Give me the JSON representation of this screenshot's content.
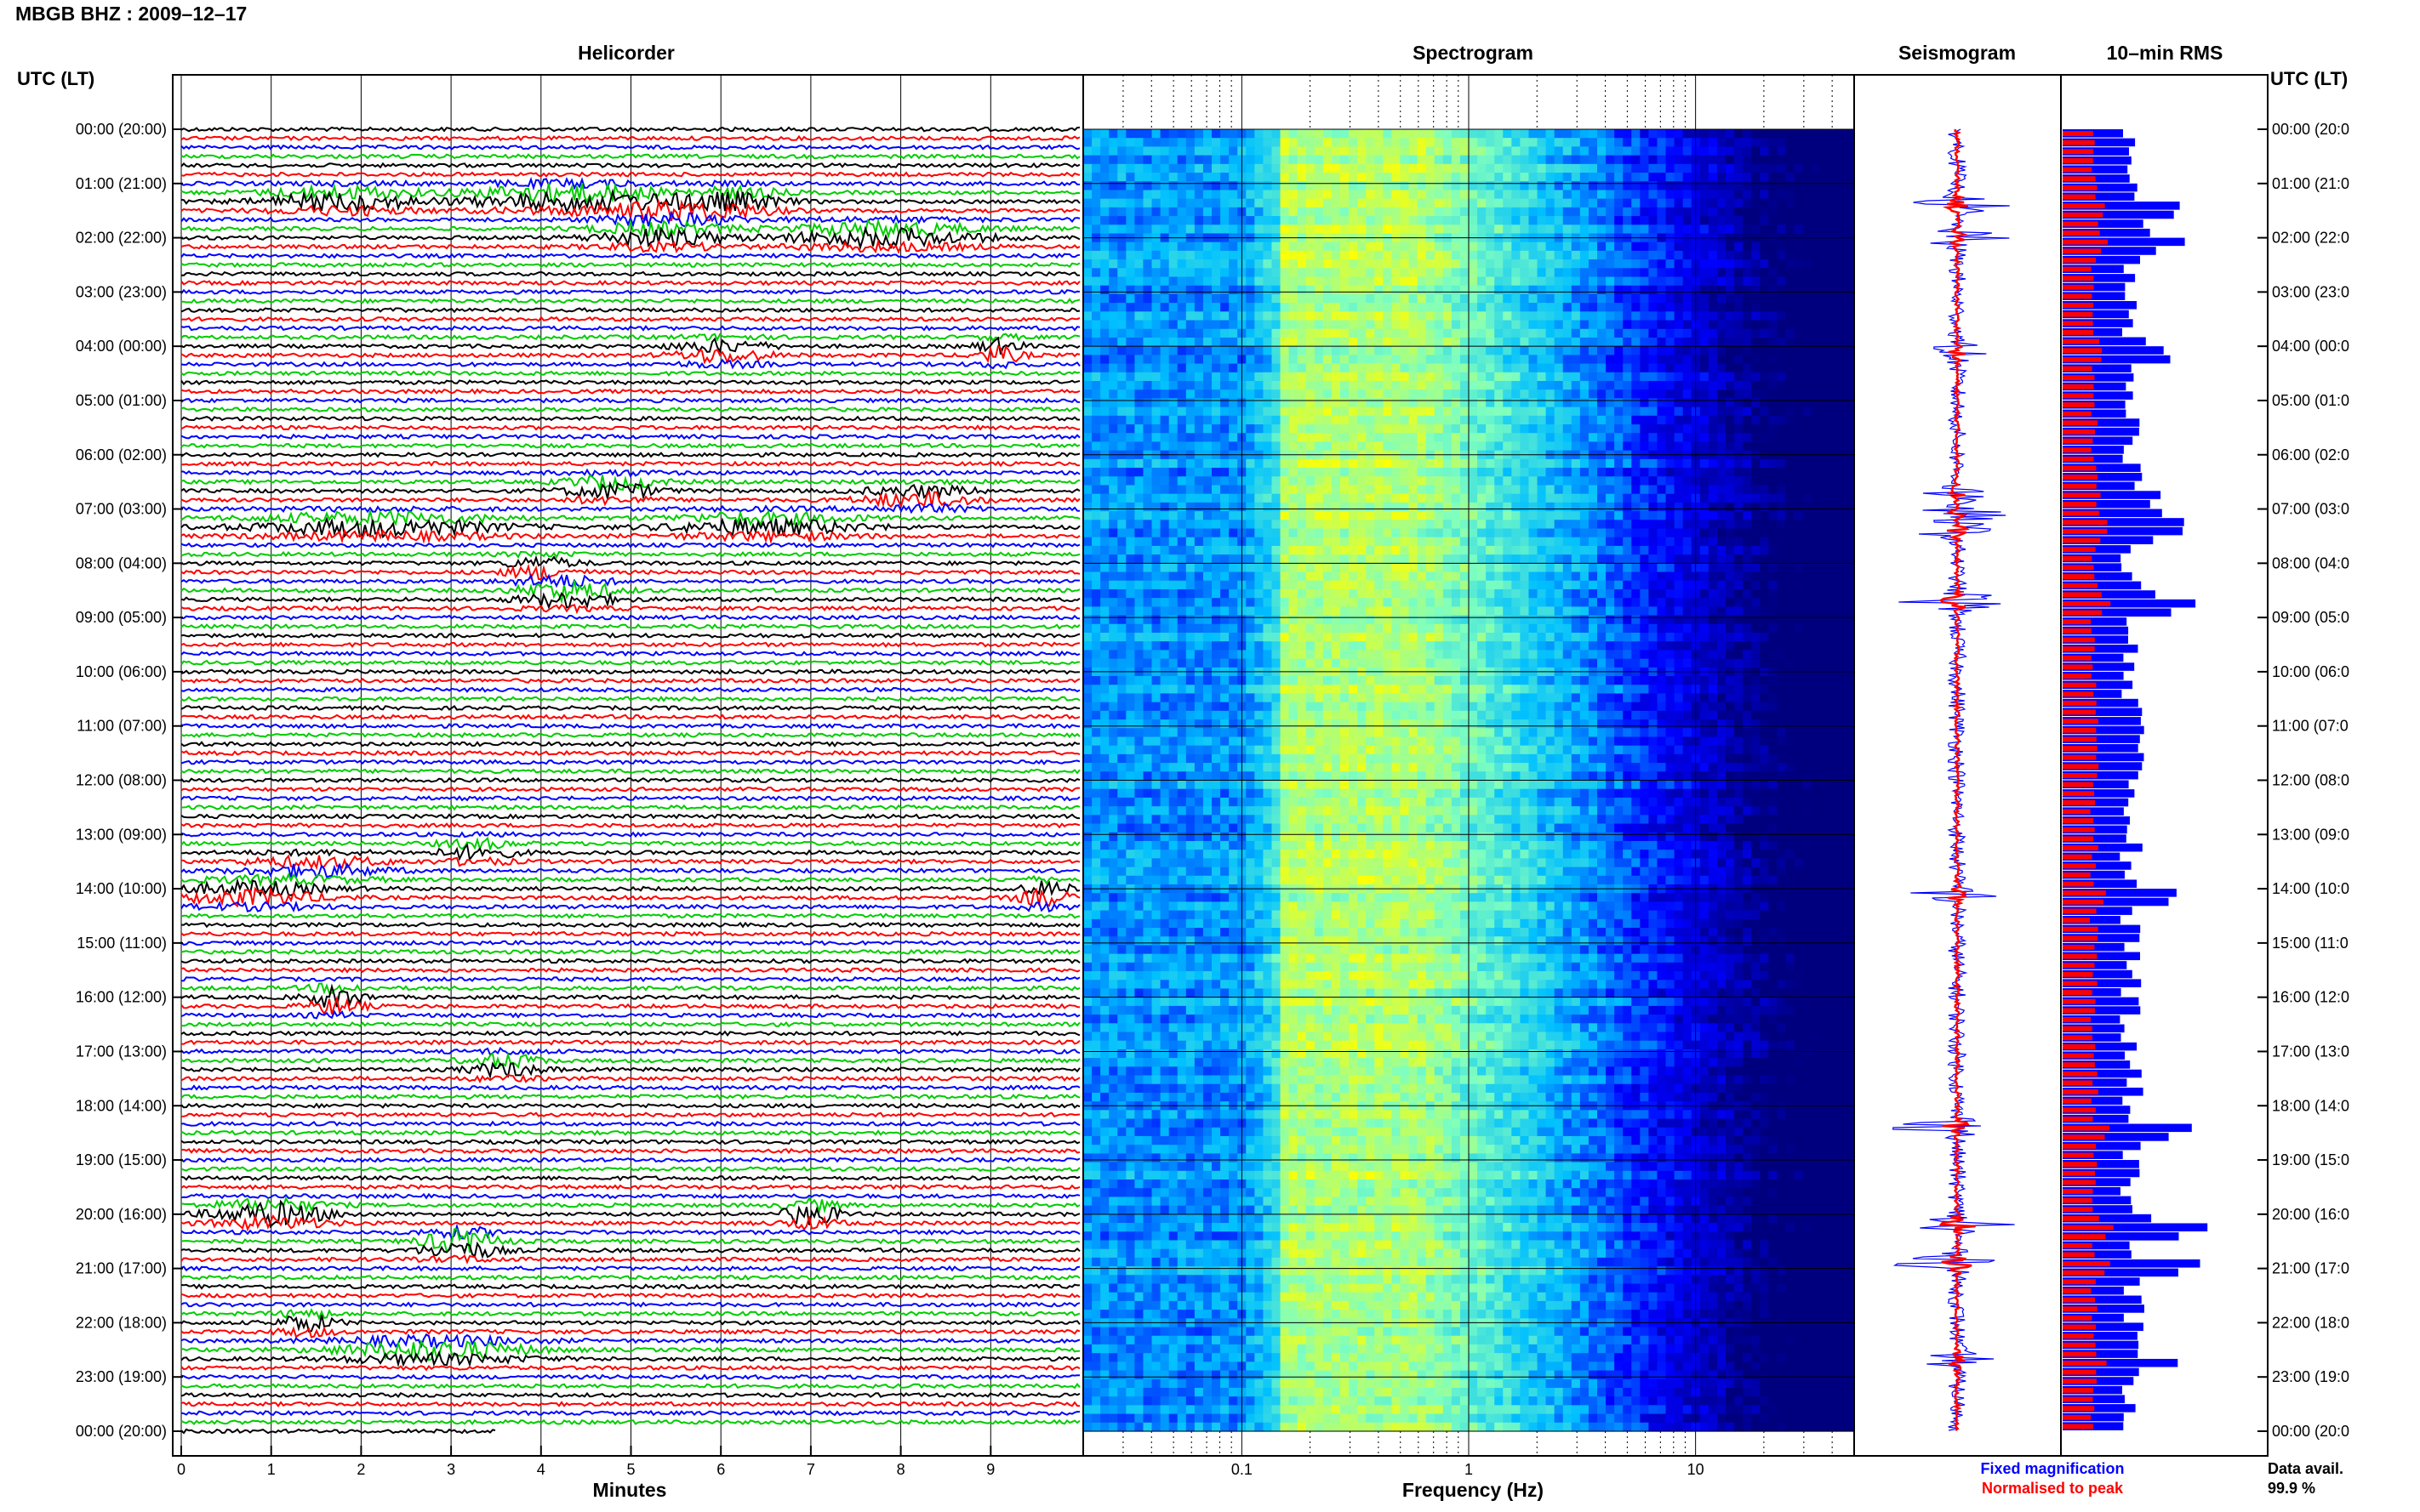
{
  "page": {
    "title": "MBGB BHZ : 2009–12–17",
    "left_axis_title": "UTC (LT)",
    "right_axis_title": "UTC (LT)"
  },
  "panels": {
    "helicorder": {
      "title": "Helicorder",
      "xlabel": "Minutes"
    },
    "spectrogram": {
      "title": "Spectrogram",
      "xlabel": "Frequency (Hz)"
    },
    "seismogram": {
      "title": "Seismogram"
    },
    "rms": {
      "title": "10–min RMS"
    }
  },
  "legend": {
    "fixed": "Fixed magnification",
    "normalised": "Normalised to peak",
    "fixed_color": "#0000ff",
    "normalised_color": "#ff0000"
  },
  "availability": {
    "label": "Data avail.",
    "value": "99.9 %"
  },
  "colors": {
    "trace_cycle": [
      "#000000",
      "#ff0000",
      "#0000ff",
      "#00cc00"
    ],
    "seis_fixed": "#0000ff",
    "seis_norm": "#ff0000",
    "rms_fixed": "#0000ff",
    "rms_norm": "#ff0000",
    "spectrogram_scale": [
      "#00007f",
      "#0000ff",
      "#00bfff",
      "#7fffbf",
      "#ffff00"
    ]
  },
  "chart_data": {
    "type": "helicorder",
    "time_labels": [
      "00:00 (20:00)",
      "01:00 (21:00)",
      "02:00 (22:00)",
      "03:00 (23:00)",
      "04:00 (00:00)",
      "05:00 (01:00)",
      "06:00 (02:00)",
      "07:00 (03:00)",
      "08:00 (04:00)",
      "09:00 (05:00)",
      "10:00 (06:00)",
      "11:00 (07:00)",
      "12:00 (08:00)",
      "13:00 (09:00)",
      "14:00 (10:00)",
      "15:00 (11:00)",
      "16:00 (12:00)",
      "17:00 (13:00)",
      "18:00 (14:00)",
      "19:00 (15:00)",
      "20:00 (16:00)",
      "21:00 (17:00)",
      "22:00 (18:00)",
      "23:00 (19:00)",
      "00:00 (20:00)"
    ],
    "right_time_labels": [
      "00:00 (20:0",
      "01:00 (21:0",
      "02:00 (22:0",
      "03:00 (23:0",
      "04:00 (00:0",
      "05:00 (01:0",
      "06:00 (02:0",
      "07:00 (03:0",
      "08:00 (04:0",
      "09:00 (05:0",
      "10:00 (06:0",
      "11:00 (07:0",
      "12:00 (08:0",
      "13:00 (09:0",
      "14:00 (10:0",
      "15:00 (11:0",
      "16:00 (12:0",
      "17:00 (13:0",
      "18:00 (14:0",
      "19:00 (15:0",
      "20:00 (16:0",
      "21:00 (17:0",
      "22:00 (18:0",
      "23:00 (19:0",
      "00:00 (20:0"
    ],
    "helicorder_x_ticks": [
      "0",
      "1",
      "2",
      "3",
      "4",
      "5",
      "6",
      "7",
      "8",
      "9"
    ],
    "helicorder_xlim": [
      0,
      10
    ],
    "spectrogram_x_ticks": [
      "0.1",
      "1",
      "10"
    ],
    "spectrogram_xlim": [
      0.02,
      50
    ],
    "spectrogram_xscale": "log",
    "rows_per_hour": 6,
    "hours": 24,
    "helicorder_events": [
      {
        "hour": 1.25,
        "minute": 4.3,
        "width": 2.0,
        "amp": 2.2,
        "color": "#000000"
      },
      {
        "hour": 1.3,
        "minute": 1.8,
        "width": 1.6,
        "amp": 1.8,
        "color": "#000000"
      },
      {
        "hour": 1.3,
        "minute": 6.2,
        "width": 1.0,
        "amp": 1.4,
        "color": "#000000"
      },
      {
        "hour": 1.5,
        "minute": 5.5,
        "width": 1.5,
        "amp": 1.6,
        "color": "#00cc00"
      },
      {
        "hour": 1.95,
        "minute": 7.8,
        "width": 2.0,
        "amp": 2.0,
        "color": "#000000"
      },
      {
        "hour": 1.95,
        "minute": 5.3,
        "width": 1.4,
        "amp": 1.8,
        "color": "#000000"
      },
      {
        "hour": 4.1,
        "minute": 6.0,
        "width": 1.0,
        "amp": 1.6,
        "color": "#ff0000"
      },
      {
        "hour": 4.1,
        "minute": 9.1,
        "width": 0.5,
        "amp": 1.8,
        "color": "#ff0000"
      },
      {
        "hour": 6.6,
        "minute": 4.8,
        "width": 1.0,
        "amp": 1.8,
        "color": "#00cc00"
      },
      {
        "hour": 6.8,
        "minute": 8.2,
        "width": 1.2,
        "amp": 1.6,
        "color": "#000000"
      },
      {
        "hour": 7.3,
        "minute": 2.2,
        "width": 2.5,
        "amp": 1.8,
        "color": "#ff0000"
      },
      {
        "hour": 7.3,
        "minute": 6.5,
        "width": 2.0,
        "amp": 1.6,
        "color": "#00cc00"
      },
      {
        "hour": 8.55,
        "minute": 4.3,
        "width": 1.0,
        "amp": 2.2,
        "color": "#000000"
      },
      {
        "hour": 8.1,
        "minute": 4.0,
        "width": 0.8,
        "amp": 1.4,
        "color": "#000000"
      },
      {
        "hour": 13.3,
        "minute": 3.3,
        "width": 0.8,
        "amp": 1.4,
        "color": "#000000"
      },
      {
        "hour": 13.6,
        "minute": 1.5,
        "width": 1.5,
        "amp": 1.4,
        "color": "#0000ff"
      },
      {
        "hour": 14.1,
        "minute": 0.8,
        "width": 1.5,
        "amp": 1.8,
        "color": "#00cc00"
      },
      {
        "hour": 14.1,
        "minute": 9.6,
        "width": 0.6,
        "amp": 1.8,
        "color": "#0000ff"
      },
      {
        "hour": 16.05,
        "minute": 1.7,
        "width": 0.6,
        "amp": 2.2,
        "color": "#ff0000"
      },
      {
        "hour": 17.25,
        "minute": 3.6,
        "width": 0.8,
        "amp": 1.6,
        "color": "#000000"
      },
      {
        "hour": 20.0,
        "minute": 1.0,
        "width": 1.2,
        "amp": 2.2,
        "color": "#ff0000"
      },
      {
        "hour": 20.0,
        "minute": 7.0,
        "width": 0.6,
        "amp": 2.0,
        "color": "#ff0000"
      },
      {
        "hour": 20.55,
        "minute": 3.1,
        "width": 0.8,
        "amp": 2.6,
        "color": "#ff0000"
      },
      {
        "hour": 22.5,
        "minute": 2.8,
        "width": 2.0,
        "amp": 1.8,
        "color": "#000000"
      },
      {
        "hour": 22.0,
        "minute": 1.4,
        "width": 0.6,
        "amp": 1.6,
        "color": "#000000"
      }
    ],
    "seismogram_events": [
      {
        "hour": 1.4,
        "amp": 0.55
      },
      {
        "hour": 2.0,
        "amp": 0.5
      },
      {
        "hour": 4.1,
        "amp": 0.35
      },
      {
        "hour": 6.7,
        "amp": 0.4
      },
      {
        "hour": 7.1,
        "amp": 0.5
      },
      {
        "hour": 7.4,
        "amp": 0.45
      },
      {
        "hour": 8.7,
        "amp": 0.75
      },
      {
        "hour": 14.1,
        "amp": 0.5
      },
      {
        "hour": 18.4,
        "amp": 0.7
      },
      {
        "hour": 20.2,
        "amp": 0.85
      },
      {
        "hour": 20.9,
        "amp": 0.7
      },
      {
        "hour": 22.7,
        "amp": 0.4
      }
    ]
  }
}
